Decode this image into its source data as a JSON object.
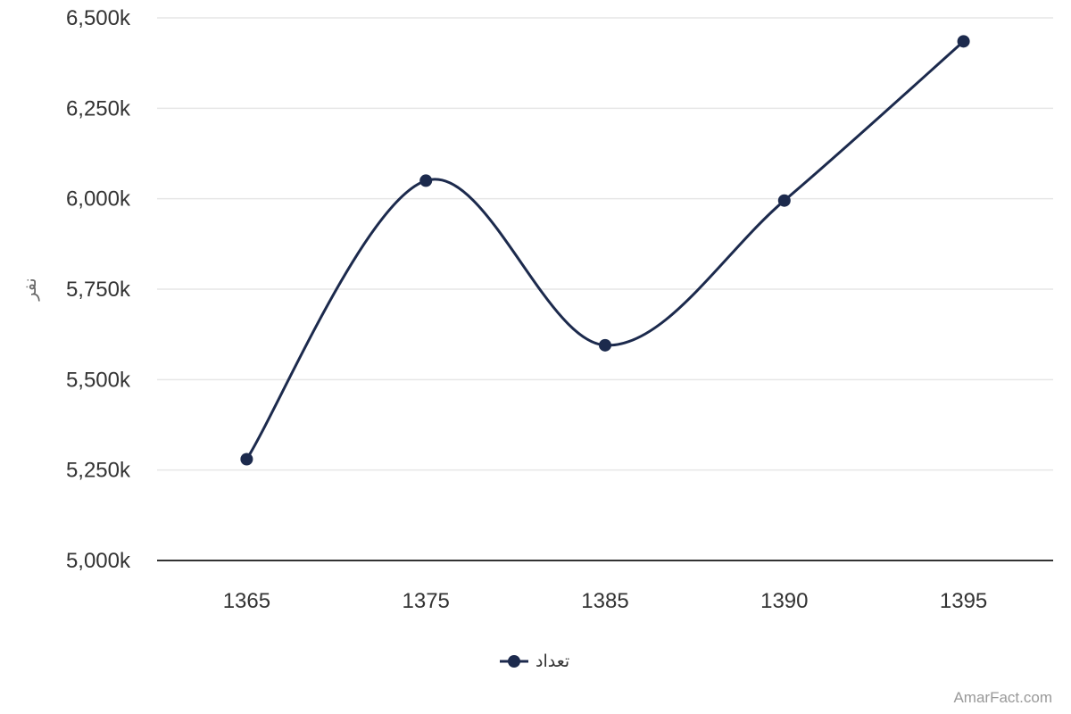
{
  "chart_data": {
    "type": "line",
    "curve": "smooth",
    "categories": [
      "1365",
      "1375",
      "1385",
      "1390",
      "1395"
    ],
    "series": [
      {
        "name": "تعداد",
        "values": [
          5280000,
          6050000,
          5595000,
          5995000,
          6435000
        ]
      }
    ],
    "ylabel": "نفر",
    "xlabel": "",
    "ylim": [
      5000000,
      6500000
    ],
    "yticks": [
      5000000,
      5250000,
      5500000,
      5750000,
      6000000,
      6250000,
      6500000
    ],
    "ytick_labels": [
      "5,000k",
      "5,250k",
      "5,500k",
      "5,750k",
      "6,000k",
      "6,250k",
      "6,500k"
    ],
    "grid": true,
    "legend_position": "bottom-center",
    "colors": {
      "series": "#1c2a4d",
      "grid": "#e6e6e6",
      "axis": "#333333"
    }
  },
  "credit": "AmarFact.com"
}
